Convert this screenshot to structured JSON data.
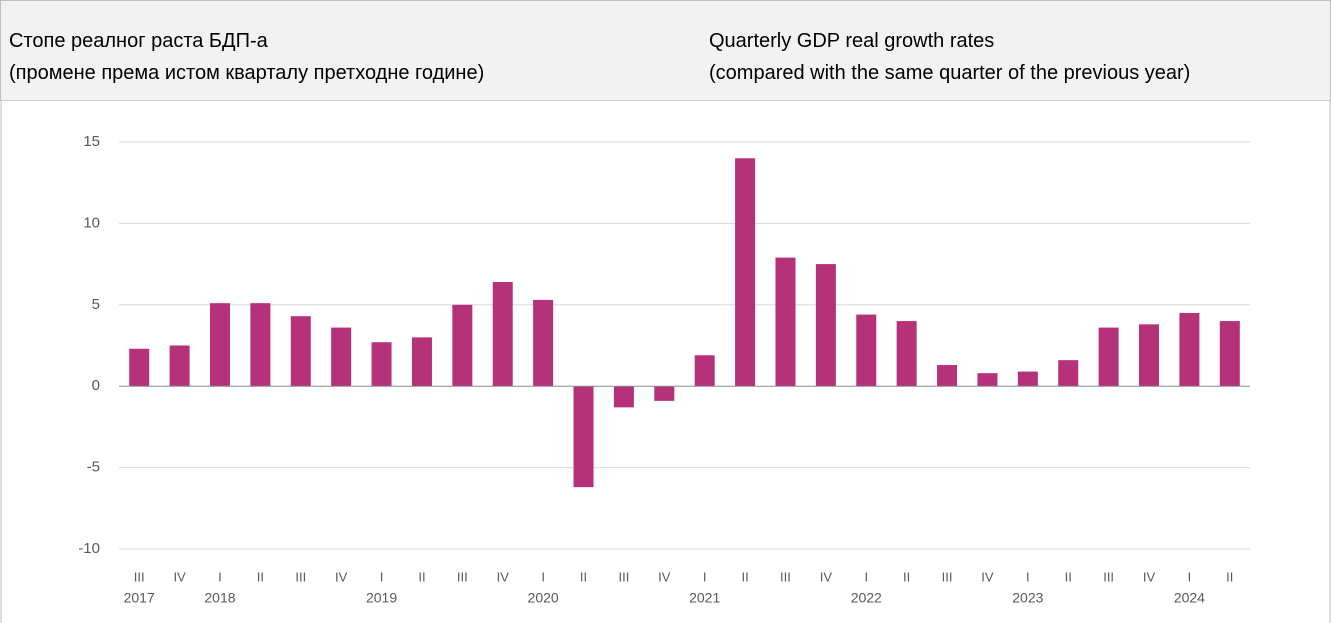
{
  "chart_data": {
    "type": "bar",
    "title": "Стопе реалног раста БДП-а",
    "subtitle": "(промене према истом кварталу претходне године)",
    "title_en": "Quarterly GDP real growth rates",
    "subtitle_en": "(compared with the same quarter of the previous year)",
    "categories": [
      "III",
      "IV",
      "I",
      "II",
      "III",
      "IV",
      "I",
      "II",
      "III",
      "IV",
      "I",
      "II",
      "III",
      "IV",
      "I",
      "II",
      "III",
      "IV",
      "I",
      "II",
      "III",
      "IV",
      "I",
      "II",
      "III",
      "IV",
      "I",
      "II"
    ],
    "year_labels": [
      "2017",
      null,
      "2018",
      null,
      null,
      null,
      "2019",
      null,
      null,
      null,
      "2020",
      null,
      null,
      null,
      "2021",
      null,
      null,
      null,
      "2022",
      null,
      null,
      null,
      "2023",
      null,
      null,
      null,
      "2024",
      null
    ],
    "values": [
      2.3,
      2.5,
      5.1,
      5.1,
      4.3,
      3.6,
      2.7,
      3.0,
      5.0,
      6.4,
      5.3,
      -6.2,
      -1.3,
      -0.9,
      1.9,
      14.0,
      7.9,
      7.5,
      4.4,
      4.0,
      1.3,
      0.8,
      0.9,
      1.6,
      3.6,
      3.8,
      4.5,
      4.0
    ],
    "color": "#b5317a",
    "ylim": [
      -10,
      15
    ],
    "yticks": [
      -10,
      -5,
      0,
      5,
      10,
      15
    ],
    "grid": true
  }
}
